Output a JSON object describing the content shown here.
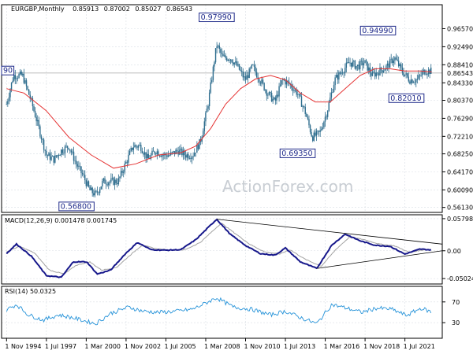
{
  "chart_data": [
    {
      "type": "candlestick",
      "panel": "price",
      "title": "EURGBP,Monthly",
      "ohlc_header": [
        "0.85913",
        "0.87002",
        "0.85027",
        "0.86543"
      ],
      "last_price": "0.86543",
      "ylim": [
        0.55,
        1.02
      ],
      "yticks": [
        "0.96570",
        "0.92490",
        "0.88410",
        "0.84330",
        "0.80370",
        "0.76290",
        "0.72210",
        "0.68250",
        "0.64170",
        "0.60090",
        "0.56130"
      ],
      "x_tick_labels": [
        "1 Nov 1994",
        "1 Jul 1997",
        "1 Mar 2000",
        "1 Nov 2002",
        "1 Jul 2005",
        "1 Mar 2008",
        "1 Nov 2010",
        "1 Jul 2013",
        "1 Mar 2016",
        "1 Nov 2018",
        "1 Jul 2021"
      ],
      "close_path": [
        [
          1994.83,
          0.795
        ],
        [
          1995.3,
          0.86
        ],
        [
          1995.9,
          0.86
        ],
        [
          1996.5,
          0.8
        ],
        [
          1997.0,
          0.74
        ],
        [
          1997.5,
          0.68
        ],
        [
          1998.0,
          0.67
        ],
        [
          1998.5,
          0.69
        ],
        [
          1999.0,
          0.7
        ],
        [
          1999.5,
          0.66
        ],
        [
          2000.0,
          0.63
        ],
        [
          2000.4,
          0.6
        ],
        [
          2000.8,
          0.59
        ],
        [
          2001.3,
          0.62
        ],
        [
          2001.8,
          0.62
        ],
        [
          2002.3,
          0.62
        ],
        [
          2002.8,
          0.66
        ],
        [
          2003.3,
          0.7
        ],
        [
          2003.8,
          0.7
        ],
        [
          2004.3,
          0.67
        ],
        [
          2004.8,
          0.69
        ],
        [
          2005.3,
          0.68
        ],
        [
          2005.8,
          0.68
        ],
        [
          2006.3,
          0.69
        ],
        [
          2006.8,
          0.68
        ],
        [
          2007.3,
          0.68
        ],
        [
          2007.8,
          0.71
        ],
        [
          2008.3,
          0.79
        ],
        [
          2008.9,
          0.93
        ],
        [
          2009.3,
          0.9
        ],
        [
          2009.8,
          0.9
        ],
        [
          2010.3,
          0.88
        ],
        [
          2010.8,
          0.85
        ],
        [
          2011.3,
          0.88
        ],
        [
          2011.8,
          0.85
        ],
        [
          2012.3,
          0.82
        ],
        [
          2012.8,
          0.8
        ],
        [
          2013.3,
          0.85
        ],
        [
          2013.8,
          0.84
        ],
        [
          2014.3,
          0.82
        ],
        [
          2014.8,
          0.78
        ],
        [
          2015.3,
          0.72
        ],
        [
          2015.8,
          0.73
        ],
        [
          2016.3,
          0.78
        ],
        [
          2016.8,
          0.85
        ],
        [
          2017.3,
          0.87
        ],
        [
          2017.8,
          0.89
        ],
        [
          2018.3,
          0.88
        ],
        [
          2018.8,
          0.89
        ],
        [
          2019.3,
          0.86
        ],
        [
          2019.8,
          0.87
        ],
        [
          2020.3,
          0.88
        ],
        [
          2020.8,
          0.9
        ],
        [
          2021.3,
          0.87
        ],
        [
          2021.8,
          0.85
        ],
        [
          2022.3,
          0.85
        ],
        [
          2022.8,
          0.87
        ],
        [
          2023.3,
          0.87
        ]
      ],
      "sma_path": [
        [
          1994.83,
          0.83
        ],
        [
          1996.0,
          0.82
        ],
        [
          1997.5,
          0.78
        ],
        [
          1999.0,
          0.72
        ],
        [
          2000.5,
          0.68
        ],
        [
          2002.0,
          0.65
        ],
        [
          2003.5,
          0.66
        ],
        [
          2005.0,
          0.68
        ],
        [
          2006.5,
          0.685
        ],
        [
          2007.5,
          0.7
        ],
        [
          2008.5,
          0.74
        ],
        [
          2009.5,
          0.795
        ],
        [
          2010.5,
          0.83
        ],
        [
          2011.5,
          0.852
        ],
        [
          2012.5,
          0.86
        ],
        [
          2013.5,
          0.85
        ],
        [
          2014.5,
          0.82
        ],
        [
          2015.5,
          0.8
        ],
        [
          2016.5,
          0.8
        ],
        [
          2017.5,
          0.83
        ],
        [
          2018.5,
          0.86
        ],
        [
          2019.5,
          0.875
        ],
        [
          2020.5,
          0.875
        ],
        [
          2021.5,
          0.87
        ],
        [
          2022.5,
          0.87
        ],
        [
          2023.3,
          0.868
        ]
      ],
      "annotations": [
        {
          "label": "0.56800",
          "x": 2000.8,
          "y": 0.568
        },
        {
          "label": "0.97990",
          "x": 2008.9,
          "y": 0.9799
        },
        {
          "label": "0.69350",
          "x": 2015.6,
          "y": 0.6935
        },
        {
          "label": "0.94990",
          "x": 2019.7,
          "y": 0.9499
        },
        {
          "label": "0.82010",
          "x": 2021.6,
          "y": 0.8201
        },
        {
          "label": "90",
          "x": 1994.9,
          "y": 0.879
        }
      ]
    },
    {
      "type": "line",
      "panel": "macd",
      "title": "MACD(12,26,9) 0.001478 0.001745",
      "ylim": [
        -0.06,
        0.065
      ],
      "yticks": [
        "0.057984",
        "0.00",
        "-0.050241"
      ],
      "macd_path": [
        [
          1994.83,
          -0.005
        ],
        [
          1995.5,
          0.012
        ],
        [
          1996.5,
          -0.01
        ],
        [
          1997.5,
          -0.045
        ],
        [
          1998.5,
          -0.048
        ],
        [
          1999.3,
          -0.02
        ],
        [
          2000.2,
          -0.02
        ],
        [
          2000.9,
          -0.042
        ],
        [
          2001.8,
          -0.035
        ],
        [
          2002.8,
          -0.005
        ],
        [
          2003.6,
          0.015
        ],
        [
          2004.5,
          0.002
        ],
        [
          2005.5,
          0.001
        ],
        [
          2006.5,
          0.002
        ],
        [
          2007.5,
          0.02
        ],
        [
          2008.9,
          0.057
        ],
        [
          2009.8,
          0.03
        ],
        [
          2010.8,
          0.01
        ],
        [
          2011.8,
          -0.005
        ],
        [
          2012.8,
          -0.008
        ],
        [
          2013.5,
          0.005
        ],
        [
          2014.5,
          -0.02
        ],
        [
          2015.6,
          -0.032
        ],
        [
          2016.6,
          0.01
        ],
        [
          2017.5,
          0.03
        ],
        [
          2018.5,
          0.018
        ],
        [
          2019.5,
          0.01
        ],
        [
          2020.5,
          0.008
        ],
        [
          2021.5,
          -0.006
        ],
        [
          2022.5,
          0.003
        ],
        [
          2023.3,
          0.0015
        ]
      ],
      "signal_path": [
        [
          1994.83,
          -0.002
        ],
        [
          1995.7,
          0.008
        ],
        [
          1996.7,
          -0.004
        ],
        [
          1997.7,
          -0.035
        ],
        [
          1998.7,
          -0.042
        ],
        [
          1999.5,
          -0.026
        ],
        [
          2000.4,
          -0.02
        ],
        [
          2001.2,
          -0.035
        ],
        [
          2002.2,
          -0.03
        ],
        [
          2003.1,
          -0.008
        ],
        [
          2003.9,
          0.01
        ],
        [
          2004.8,
          0.004
        ],
        [
          2005.8,
          0.001
        ],
        [
          2006.8,
          0.002
        ],
        [
          2007.8,
          0.015
        ],
        [
          2009.2,
          0.05
        ],
        [
          2010.1,
          0.032
        ],
        [
          2011.1,
          0.012
        ],
        [
          2012.1,
          -0.002
        ],
        [
          2013.1,
          -0.006
        ],
        [
          2013.8,
          0.002
        ],
        [
          2014.8,
          -0.015
        ],
        [
          2015.9,
          -0.028
        ],
        [
          2016.9,
          0.003
        ],
        [
          2017.8,
          0.025
        ],
        [
          2018.8,
          0.02
        ],
        [
          2019.8,
          0.012
        ],
        [
          2020.8,
          0.009
        ],
        [
          2021.8,
          -0.003
        ],
        [
          2022.8,
          0.002
        ],
        [
          2023.3,
          0.0017
        ]
      ],
      "trendlines": [
        {
          "from": [
            2008.9,
            0.057
          ],
          "to": [
            2024.0,
            0.012
          ]
        },
        {
          "from": [
            2015.6,
            -0.032
          ],
          "to": [
            2024.0,
            0.0
          ]
        }
      ]
    },
    {
      "type": "line",
      "panel": "rsi",
      "title": "RSI(14) 50.0325",
      "ylim": [
        0,
        100
      ],
      "yticks": [
        "70",
        "30"
      ],
      "rsi_path": [
        [
          1994.83,
          55
        ],
        [
          1995.5,
          65
        ],
        [
          1996.3,
          45
        ],
        [
          1997.3,
          35
        ],
        [
          1998.3,
          45
        ],
        [
          1999.2,
          40
        ],
        [
          2000.8,
          28
        ],
        [
          2001.8,
          48
        ],
        [
          2003.0,
          60
        ],
        [
          2004.0,
          52
        ],
        [
          2005.0,
          50
        ],
        [
          2006.2,
          52
        ],
        [
          2007.3,
          56
        ],
        [
          2008.9,
          78
        ],
        [
          2010.0,
          60
        ],
        [
          2011.2,
          56
        ],
        [
          2012.5,
          45
        ],
        [
          2013.5,
          52
        ],
        [
          2014.5,
          40
        ],
        [
          2015.6,
          28
        ],
        [
          2016.6,
          65
        ],
        [
          2017.6,
          58
        ],
        [
          2018.6,
          50
        ],
        [
          2019.6,
          58
        ],
        [
          2020.6,
          56
        ],
        [
          2021.6,
          44
        ],
        [
          2022.6,
          58
        ],
        [
          2023.3,
          50
        ]
      ]
    }
  ],
  "watermark": "ActionForex.com",
  "colors": {
    "candle": "#2e6d8e",
    "sma": "#e53333",
    "macd": "#17188b",
    "signal": "#a2a2a2",
    "rsi": "#2693d9",
    "grid": "#d8dde3",
    "annotation_border": "#1f2a8a"
  }
}
